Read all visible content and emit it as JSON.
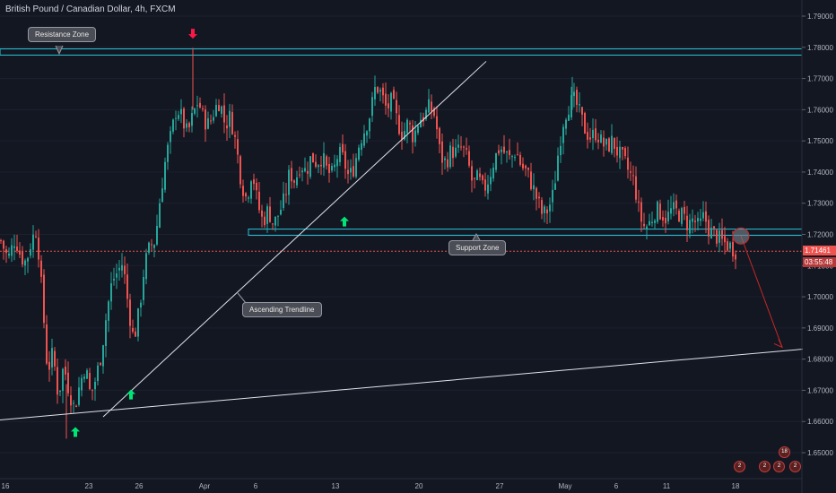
{
  "header": {
    "title": "British Pound / Canadian Dollar, 4h, FXCM"
  },
  "annotations": {
    "resistance_label": "Resistance Zone",
    "support_label": "Support Zone",
    "trendline_label": "Ascending Trendline"
  },
  "price_tags": {
    "last_price": "1.71461",
    "countdown": "03:55:48"
  },
  "badges": [
    "2",
    "2",
    "2",
    "18",
    "2"
  ],
  "colors": {
    "background": "#131722",
    "up": "#26a69a",
    "down": "#ef5350",
    "zone": "#26c6da",
    "signal_up": "#00e676",
    "signal_down": "#ff1744"
  },
  "chart_data": {
    "type": "candlestick",
    "title": "British Pound / Canadian Dollar, 4h, FXCM",
    "y_ticks": [
      "1.79000",
      "1.78000",
      "1.77000",
      "1.76000",
      "1.75000",
      "1.74000",
      "1.73000",
      "1.72000",
      "1.71000",
      "1.70000",
      "1.69000",
      "1.68000",
      "1.67000",
      "1.66000",
      "1.65000"
    ],
    "ylim": [
      1.645,
      1.792
    ],
    "x_ticks": [
      "16",
      "23",
      "26",
      "Apr",
      "6",
      "13",
      "20",
      "27",
      "May",
      "6",
      "11",
      "18"
    ],
    "last_price": 1.71461,
    "resistance_zone": [
      1.7775,
      1.7795
    ],
    "support_zone": [
      1.7197,
      1.7217
    ],
    "close_path": [
      {
        "i": 0,
        "p": 1.718
      },
      {
        "i": 8,
        "p": 1.712
      },
      {
        "i": 16,
        "p": 1.719
      },
      {
        "i": 22,
        "p": 1.713
      },
      {
        "i": 28,
        "p": 1.711
      },
      {
        "i": 34,
        "p": 1.718
      },
      {
        "i": 40,
        "p": 1.722
      },
      {
        "i": 46,
        "p": 1.7
      },
      {
        "i": 52,
        "p": 1.676
      },
      {
        "i": 58,
        "p": 1.682
      },
      {
        "i": 64,
        "p": 1.668
      },
      {
        "i": 70,
        "p": 1.678
      },
      {
        "i": 76,
        "p": 1.67
      },
      {
        "i": 82,
        "p": 1.664
      },
      {
        "i": 88,
        "p": 1.672
      },
      {
        "i": 94,
        "p": 1.678
      },
      {
        "i": 100,
        "p": 1.668
      },
      {
        "i": 106,
        "p": 1.674
      },
      {
        "i": 112,
        "p": 1.682
      },
      {
        "i": 118,
        "p": 1.695
      },
      {
        "i": 124,
        "p": 1.705
      },
      {
        "i": 130,
        "p": 1.708
      },
      {
        "i": 136,
        "p": 1.711
      },
      {
        "i": 142,
        "p": 1.697
      },
      {
        "i": 148,
        "p": 1.686
      },
      {
        "i": 154,
        "p": 1.695
      },
      {
        "i": 160,
        "p": 1.71
      },
      {
        "i": 166,
        "p": 1.716
      },
      {
        "i": 172,
        "p": 1.718
      },
      {
        "i": 178,
        "p": 1.733
      },
      {
        "i": 184,
        "p": 1.745
      },
      {
        "i": 190,
        "p": 1.752
      },
      {
        "i": 196,
        "p": 1.761
      },
      {
        "i": 202,
        "p": 1.757
      },
      {
        "i": 208,
        "p": 1.752
      },
      {
        "i": 214,
        "p": 1.758
      },
      {
        "i": 220,
        "p": 1.763
      },
      {
        "i": 226,
        "p": 1.757
      },
      {
        "i": 232,
        "p": 1.755
      },
      {
        "i": 238,
        "p": 1.76
      },
      {
        "i": 244,
        "p": 1.763
      },
      {
        "i": 250,
        "p": 1.755
      },
      {
        "i": 256,
        "p": 1.758
      },
      {
        "i": 262,
        "p": 1.749
      },
      {
        "i": 268,
        "p": 1.737
      },
      {
        "i": 274,
        "p": 1.731
      },
      {
        "i": 280,
        "p": 1.741
      },
      {
        "i": 286,
        "p": 1.73
      },
      {
        "i": 292,
        "p": 1.724
      },
      {
        "i": 298,
        "p": 1.728
      },
      {
        "i": 304,
        "p": 1.723
      },
      {
        "i": 310,
        "p": 1.727
      },
      {
        "i": 316,
        "p": 1.731
      },
      {
        "i": 322,
        "p": 1.74
      },
      {
        "i": 328,
        "p": 1.737
      },
      {
        "i": 334,
        "p": 1.743
      },
      {
        "i": 340,
        "p": 1.74
      },
      {
        "i": 346,
        "p": 1.745
      },
      {
        "i": 352,
        "p": 1.743
      },
      {
        "i": 358,
        "p": 1.745
      },
      {
        "i": 364,
        "p": 1.74
      },
      {
        "i": 370,
        "p": 1.739
      },
      {
        "i": 376,
        "p": 1.746
      },
      {
        "i": 382,
        "p": 1.744
      },
      {
        "i": 388,
        "p": 1.738
      },
      {
        "i": 394,
        "p": 1.742
      },
      {
        "i": 400,
        "p": 1.75
      },
      {
        "i": 406,
        "p": 1.754
      },
      {
        "i": 412,
        "p": 1.759
      },
      {
        "i": 418,
        "p": 1.768
      },
      {
        "i": 424,
        "p": 1.765
      },
      {
        "i": 430,
        "p": 1.76
      },
      {
        "i": 436,
        "p": 1.763
      },
      {
        "i": 442,
        "p": 1.756
      },
      {
        "i": 448,
        "p": 1.752
      },
      {
        "i": 454,
        "p": 1.756
      },
      {
        "i": 460,
        "p": 1.751
      },
      {
        "i": 466,
        "p": 1.757
      },
      {
        "i": 472,
        "p": 1.758
      },
      {
        "i": 478,
        "p": 1.761
      },
      {
        "i": 484,
        "p": 1.758
      },
      {
        "i": 490,
        "p": 1.745
      },
      {
        "i": 496,
        "p": 1.743
      },
      {
        "i": 502,
        "p": 1.747
      },
      {
        "i": 508,
        "p": 1.746
      },
      {
        "i": 514,
        "p": 1.748
      },
      {
        "i": 520,
        "p": 1.744
      },
      {
        "i": 526,
        "p": 1.736
      },
      {
        "i": 532,
        "p": 1.738
      },
      {
        "i": 538,
        "p": 1.734
      },
      {
        "i": 544,
        "p": 1.738
      },
      {
        "i": 550,
        "p": 1.744
      },
      {
        "i": 556,
        "p": 1.748
      },
      {
        "i": 562,
        "p": 1.746
      },
      {
        "i": 568,
        "p": 1.744
      },
      {
        "i": 574,
        "p": 1.747
      },
      {
        "i": 580,
        "p": 1.742
      },
      {
        "i": 586,
        "p": 1.74
      },
      {
        "i": 592,
        "p": 1.736
      },
      {
        "i": 598,
        "p": 1.731
      },
      {
        "i": 604,
        "p": 1.726
      },
      {
        "i": 610,
        "p": 1.728
      },
      {
        "i": 616,
        "p": 1.733
      },
      {
        "i": 622,
        "p": 1.748
      },
      {
        "i": 628,
        "p": 1.758
      },
      {
        "i": 634,
        "p": 1.762
      },
      {
        "i": 640,
        "p": 1.763
      },
      {
        "i": 646,
        "p": 1.758
      },
      {
        "i": 652,
        "p": 1.753
      },
      {
        "i": 658,
        "p": 1.751
      },
      {
        "i": 664,
        "p": 1.753
      },
      {
        "i": 670,
        "p": 1.749
      },
      {
        "i": 676,
        "p": 1.748
      },
      {
        "i": 682,
        "p": 1.75
      },
      {
        "i": 688,
        "p": 1.746
      },
      {
        "i": 694,
        "p": 1.744
      },
      {
        "i": 700,
        "p": 1.74
      },
      {
        "i": 706,
        "p": 1.737
      },
      {
        "i": 712,
        "p": 1.726
      },
      {
        "i": 718,
        "p": 1.722
      },
      {
        "i": 724,
        "p": 1.724
      },
      {
        "i": 730,
        "p": 1.728
      },
      {
        "i": 736,
        "p": 1.727
      },
      {
        "i": 742,
        "p": 1.725
      },
      {
        "i": 748,
        "p": 1.728
      },
      {
        "i": 754,
        "p": 1.727
      },
      {
        "i": 760,
        "p": 1.726
      },
      {
        "i": 766,
        "p": 1.723
      },
      {
        "i": 772,
        "p": 1.725
      },
      {
        "i": 778,
        "p": 1.722
      },
      {
        "i": 784,
        "p": 1.726
      },
      {
        "i": 790,
        "p": 1.721
      },
      {
        "i": 796,
        "p": 1.72
      },
      {
        "i": 802,
        "p": 1.718
      },
      {
        "i": 808,
        "p": 1.717
      },
      {
        "i": 814,
        "p": 1.716
      },
      {
        "i": 820,
        "p": 1.7146
      }
    ],
    "lines": [
      {
        "name": "ascending-trendline",
        "from": {
          "i": 115,
          "p": 1.6615
        },
        "to": {
          "i": 542,
          "p": 1.7755
        }
      },
      {
        "name": "lower-trendline",
        "from": {
          "i": 0,
          "p": 1.6605
        },
        "to": {
          "i": 895,
          "p": 1.6832
        }
      },
      {
        "name": "projection-arrow",
        "from": {
          "i": 826,
          "p": 1.7195
        },
        "to": {
          "i": 872,
          "p": 1.6838
        }
      }
    ],
    "signals": [
      {
        "type": "up",
        "i": 84,
        "p": 1.6565
      },
      {
        "type": "up",
        "i": 146,
        "p": 1.6685
      },
      {
        "type": "up",
        "i": 384,
        "p": 1.724
      },
      {
        "type": "down",
        "i": 215,
        "p": 1.7845
      }
    ],
    "highlight_circle": {
      "i": 826,
      "p": 1.7195
    }
  }
}
